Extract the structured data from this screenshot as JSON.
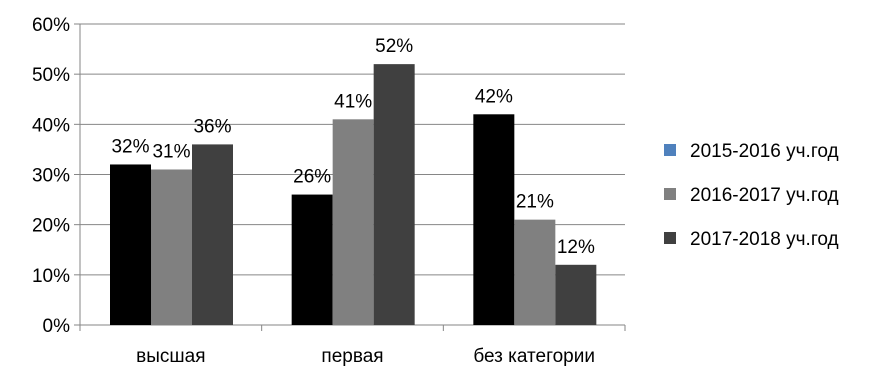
{
  "chart_data": {
    "type": "bar",
    "categories": [
      "высшая",
      "первая",
      "без категории"
    ],
    "series": [
      {
        "name": "2015-2016 уч.год",
        "values": [
          32,
          26,
          42
        ],
        "color": "#000000",
        "legend_color": "#4f81bd"
      },
      {
        "name": "2016-2017 уч.год",
        "values": [
          31,
          41,
          21
        ],
        "color": "#808080",
        "legend_color": "#808080"
      },
      {
        "name": "2017-2018 уч.год",
        "values": [
          36,
          52,
          12
        ],
        "color": "#404040",
        "legend_color": "#404040"
      }
    ],
    "value_suffix": "%",
    "ylim": [
      0,
      60
    ],
    "y_ticks": [
      0,
      10,
      20,
      30,
      40,
      50,
      60
    ],
    "grid": true,
    "grid_color": "#868686",
    "legend_position": "right"
  }
}
